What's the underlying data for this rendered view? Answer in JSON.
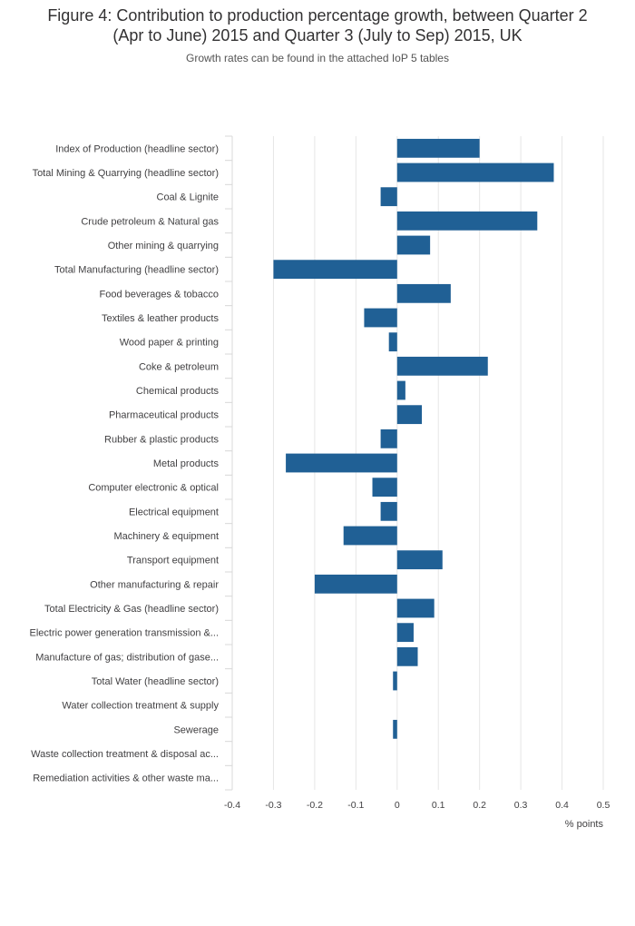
{
  "chart_data": {
    "type": "bar",
    "orientation": "horizontal",
    "title": "Figure 4: Contribution to production percentage growth, between Quarter 2 (Apr to June) 2015 and Quarter 3 (July to Sep) 2015, UK",
    "title_lines": [
      "Figure 4: Contribution to production percentage growth, between Quarter 2",
      "(Apr to June) 2015 and Quarter 3 (July to Sep) 2015, UK"
    ],
    "subtitle": "Growth rates can be found in the attached IoP 5 tables",
    "xlabel": "% points",
    "ylabel": "",
    "xlim": [
      -0.4,
      0.5
    ],
    "xticks": [
      -0.4,
      -0.3,
      -0.2,
      -0.1,
      0,
      0.1,
      0.2,
      0.3,
      0.4,
      0.5
    ],
    "xtick_labels": [
      "-0.4",
      "-0.3",
      "-0.2",
      "-0.1",
      "0",
      "0.1",
      "0.2",
      "0.3",
      "0.4",
      "0.5"
    ],
    "grid": true,
    "bar_color": "#206095",
    "categories": [
      "Index of Production (headline sector)",
      "Total Mining & Quarrying (headline sector)",
      "Coal & Lignite",
      "Crude petroleum & Natural gas",
      "Other mining & quarrying",
      "Total Manufacturing (headline sector)",
      "Food beverages & tobacco",
      "Textiles & leather products",
      "Wood paper & printing",
      "Coke & petroleum",
      "Chemical products",
      "Pharmaceutical products",
      "Rubber & plastic products",
      "Metal products",
      "Computer electronic & optical",
      "Electrical equipment",
      "Machinery & equipment",
      "Transport equipment",
      "Other manufacturing & repair",
      "Total Electricity & Gas (headline sector)",
      "Electric power generation transmission &...",
      "Manufacture of gas; distribution of gase...",
      "Total Water (headline sector)",
      "Water collection treatment & supply",
      "Sewerage",
      "Waste collection treatment & disposal ac...",
      "Remediation activities & other waste ma..."
    ],
    "values": [
      0.2,
      0.38,
      -0.04,
      0.34,
      0.08,
      -0.3,
      0.13,
      -0.08,
      -0.02,
      0.22,
      0.02,
      0.06,
      -0.04,
      -0.27,
      -0.06,
      -0.04,
      -0.13,
      0.11,
      -0.2,
      0.09,
      0.04,
      0.05,
      -0.01,
      0,
      -0.01,
      0,
      0
    ]
  }
}
